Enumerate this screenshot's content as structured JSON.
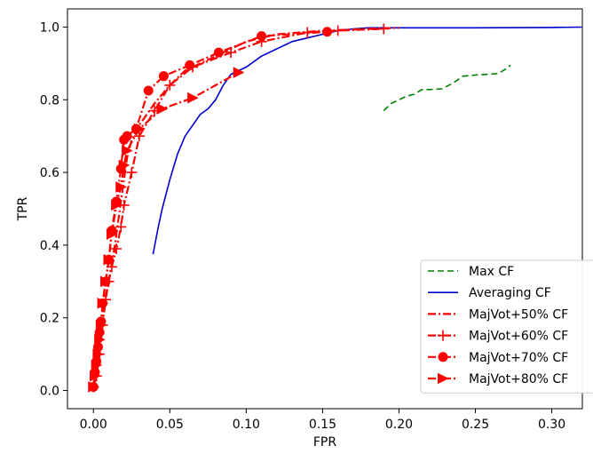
{
  "chart_data": {
    "type": "line",
    "title": "",
    "xlabel": "FPR",
    "ylabel": "TPR",
    "xlim": [
      -0.017,
      0.32
    ],
    "ylim": [
      -0.05,
      1.05
    ],
    "xticks": [
      0.0,
      0.05,
      0.1,
      0.15,
      0.2,
      0.25,
      0.3
    ],
    "xtick_labels": [
      "0.00",
      "0.05",
      "0.10",
      "0.15",
      "0.20",
      "0.25",
      "0.30"
    ],
    "yticks": [
      0.0,
      0.2,
      0.4,
      0.6,
      0.8,
      1.0
    ],
    "ytick_labels": [
      "0.0",
      "0.2",
      "0.4",
      "0.6",
      "0.8",
      "1.0"
    ],
    "grid": false,
    "legend_position": "bottom-right",
    "series": [
      {
        "name": "Max CF",
        "color": "#008000",
        "style": "dashed",
        "marker": "none",
        "x": [
          0.19,
          0.195,
          0.2,
          0.205,
          0.21,
          0.215,
          0.22,
          0.228,
          0.235,
          0.242,
          0.25,
          0.258,
          0.265,
          0.27,
          0.273
        ],
        "y": [
          0.77,
          0.79,
          0.8,
          0.81,
          0.815,
          0.828,
          0.828,
          0.83,
          0.845,
          0.865,
          0.868,
          0.87,
          0.872,
          0.885,
          0.895
        ]
      },
      {
        "name": "Averaging CF",
        "color": "#0000cc",
        "style": "solid",
        "marker": "none",
        "x": [
          0.039,
          0.042,
          0.045,
          0.05,
          0.055,
          0.06,
          0.065,
          0.07,
          0.075,
          0.08,
          0.085,
          0.09,
          0.095,
          0.1,
          0.11,
          0.12,
          0.13,
          0.14,
          0.15,
          0.16,
          0.17,
          0.18,
          0.2,
          0.25,
          0.3,
          0.32
        ],
        "y": [
          0.375,
          0.44,
          0.5,
          0.58,
          0.65,
          0.7,
          0.73,
          0.76,
          0.775,
          0.8,
          0.84,
          0.87,
          0.88,
          0.89,
          0.92,
          0.94,
          0.96,
          0.97,
          0.98,
          0.99,
          0.995,
          0.998,
          0.998,
          0.998,
          0.999,
          1.0
        ]
      },
      {
        "name": "MajVot+50% CF",
        "color": "#ff0000",
        "style": "dashdot",
        "marker": "none",
        "x": [
          0.0,
          0.002,
          0.004,
          0.006,
          0.008,
          0.01,
          0.012,
          0.014,
          0.016,
          0.018,
          0.02,
          0.022,
          0.025,
          0.03,
          0.035,
          0.04,
          0.05,
          0.06,
          0.08,
          0.1,
          0.12,
          0.15,
          0.18,
          0.2
        ],
        "y": [
          0.01,
          0.05,
          0.12,
          0.2,
          0.26,
          0.3,
          0.35,
          0.4,
          0.46,
          0.52,
          0.58,
          0.64,
          0.69,
          0.73,
          0.76,
          0.79,
          0.84,
          0.88,
          0.92,
          0.96,
          0.98,
          0.99,
          0.995,
          0.998
        ]
      },
      {
        "name": "MajVot+60% CF",
        "color": "#ff0000",
        "style": "dashdot",
        "marker": "plus",
        "x": [
          0.0,
          0.002,
          0.004,
          0.006,
          0.008,
          0.01,
          0.012,
          0.015,
          0.018,
          0.02,
          0.025,
          0.03,
          0.04,
          0.05,
          0.065,
          0.09,
          0.11,
          0.14,
          0.16,
          0.19
        ],
        "y": [
          0.01,
          0.04,
          0.1,
          0.18,
          0.25,
          0.3,
          0.34,
          0.39,
          0.45,
          0.51,
          0.6,
          0.7,
          0.77,
          0.84,
          0.89,
          0.93,
          0.96,
          0.985,
          0.99,
          0.995
        ]
      },
      {
        "name": "MajVot+70% CF",
        "color": "#ff0000",
        "style": "dashdot",
        "marker": "circle",
        "x": [
          0.0,
          0.001,
          0.002,
          0.003,
          0.004,
          0.005,
          0.006,
          0.008,
          0.01,
          0.012,
          0.015,
          0.018,
          0.02,
          0.022,
          0.028,
          0.036,
          0.046,
          0.063,
          0.082,
          0.11,
          0.153
        ],
        "y": [
          0.01,
          0.05,
          0.08,
          0.12,
          0.16,
          0.19,
          0.24,
          0.3,
          0.36,
          0.44,
          0.52,
          0.61,
          0.69,
          0.7,
          0.72,
          0.825,
          0.865,
          0.895,
          0.93,
          0.975,
          0.987
        ]
      },
      {
        "name": "MajVot+80% CF",
        "color": "#ff0000",
        "style": "dashdot",
        "marker": "triangle-right",
        "x": [
          0.0,
          0.001,
          0.002,
          0.003,
          0.004,
          0.005,
          0.006,
          0.008,
          0.01,
          0.012,
          0.015,
          0.018,
          0.02,
          0.022,
          0.03,
          0.045,
          0.065,
          0.095
        ],
        "y": [
          0.01,
          0.04,
          0.07,
          0.1,
          0.14,
          0.18,
          0.24,
          0.3,
          0.36,
          0.43,
          0.51,
          0.56,
          0.62,
          0.66,
          0.72,
          0.775,
          0.805,
          0.875
        ]
      }
    ]
  }
}
